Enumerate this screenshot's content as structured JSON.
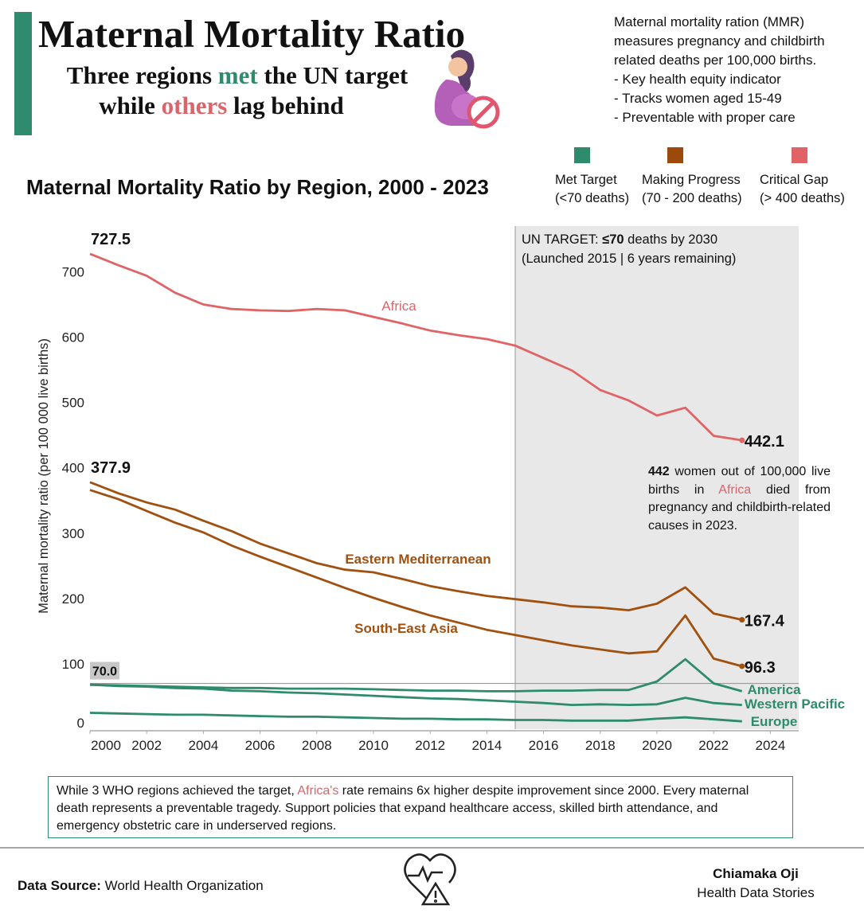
{
  "header": {
    "title": "Maternal Mortality Ratio",
    "subtitle": [
      [
        "Three regions ",
        "met",
        " the UN target"
      ],
      [
        "while ",
        "others",
        " lag behind"
      ]
    ]
  },
  "info": {
    "lines": [
      "Maternal mortality ration (MMR)",
      "measures pregnancy and childbirth",
      "related deaths per 100,000 births.",
      "- Key health equity indicator",
      "- Tracks women aged 15-49",
      "- Preventable with proper care"
    ]
  },
  "chart_data": {
    "type": "line",
    "title": "Maternal Mortality Ratio by Region, 2000 - 2023",
    "y_label": "Maternal mortality ratio (per 100 000 live births)",
    "status_legend": [
      {
        "label": "Met Target",
        "range": "(<70 deaths)",
        "color": "#2e8b6e"
      },
      {
        "label": "Making Progress",
        "range": "(70 - 200 deaths)",
        "color": "#9c4a0c"
      },
      {
        "label": "Critical Gap",
        "range": "(> 400 deaths)",
        "color": "#e06466"
      }
    ],
    "x": [
      2000,
      2001,
      2002,
      2003,
      2004,
      2005,
      2006,
      2007,
      2008,
      2009,
      2010,
      2011,
      2012,
      2013,
      2014,
      2015,
      2016,
      2017,
      2018,
      2019,
      2020,
      2021,
      2022,
      2023
    ],
    "xlim": [
      2000,
      2025
    ],
    "xticks": [
      2000,
      2002,
      2004,
      2006,
      2008,
      2010,
      2012,
      2014,
      2016,
      2018,
      2020,
      2022,
      2024
    ],
    "ylim": [
      0,
      770
    ],
    "yticks": [
      0,
      100,
      200,
      300,
      400,
      500,
      600,
      700
    ],
    "series": [
      {
        "name": "Africa",
        "color": "#e06466",
        "values": [
          727.5,
          710,
          694,
          668,
          650,
          643,
          641,
          640,
          643,
          641,
          631,
          621,
          610,
          603,
          597,
          587,
          568,
          549,
          519,
          503,
          480,
          492,
          449,
          442.1
        ]
      },
      {
        "name": "Eastern Mediterranean",
        "color": "#a0500f",
        "values": [
          377.9,
          361,
          347,
          336,
          319,
          303,
          284,
          269,
          254,
          244,
          240,
          230,
          219,
          211,
          204,
          199,
          194,
          188,
          186,
          182,
          192,
          217,
          177,
          167.4
        ]
      },
      {
        "name": "South-East Asia",
        "color": "#a0500f",
        "values": [
          366,
          352,
          334,
          316,
          301,
          281,
          264,
          248,
          232,
          216,
          201,
          187,
          174,
          163,
          152,
          144,
          136,
          128,
          122,
          116,
          119,
          174,
          108,
          96.3
        ]
      },
      {
        "name": "America",
        "color": "#2e8b6e",
        "values": [
          68,
          67,
          66,
          65,
          64,
          63,
          63,
          62,
          62,
          62,
          61,
          60,
          59,
          59,
          58,
          58,
          59,
          59,
          60,
          60,
          73,
          107,
          70,
          58
        ]
      },
      {
        "name": "Western Pacific",
        "color": "#2e8b6e",
        "values": [
          68,
          66,
          65,
          63,
          62,
          59,
          58,
          56,
          55,
          53,
          51,
          49,
          47,
          46,
          44,
          42,
          40,
          37,
          38,
          37,
          38,
          48,
          40,
          37
        ]
      },
      {
        "name": "Europe",
        "color": "#2e8b6e",
        "values": [
          25,
          24,
          23,
          22,
          22,
          21,
          20,
          19,
          19,
          18,
          17,
          16,
          16,
          15,
          15,
          14,
          14,
          13,
          13,
          13,
          16,
          18,
          15,
          12
        ]
      }
    ],
    "target": {
      "value": 70,
      "label": "70.0"
    },
    "shade_from": 2015,
    "shade_note": [
      [
        "UN TARGET: ",
        "≤70",
        " deaths by 2030"
      ],
      "(Launched 2015 | 6 years remaining)"
    ],
    "callout": [
      "442",
      " women out of 100,000 live births in ",
      "Africa",
      " died from pregnancy and childbirth-related causes in 2023."
    ]
  },
  "description": [
    "While 3 WHO regions achieved the target, ",
    "Africa's",
    " rate remains 6x higher despite improvement since 2000. Every maternal death represents a preventable tragedy. Support policies that expand healthcare access, skilled birth attendance, and emergency obstetric care in underserved regions."
  ],
  "footer": {
    "source_label": "Data Source:",
    "source": "World Health Organization",
    "author": "Chiamaka Oji",
    "org": "Health Data Stories"
  }
}
